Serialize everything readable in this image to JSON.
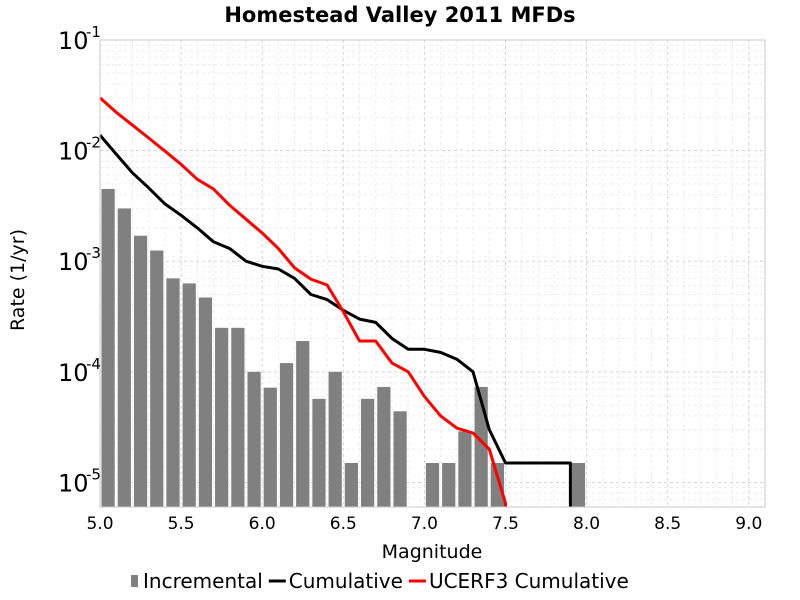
{
  "chart_data": {
    "type": "bar",
    "title": "Homestead Valley 2011 MFDs",
    "xlabel": "Magnitude",
    "ylabel": "Rate (1/yr)",
    "xlim": [
      5.0,
      9.1
    ],
    "ylim": [
      6e-06,
      0.1
    ],
    "yscale": "log",
    "grid": true,
    "legend_position": "bottom",
    "x_ticks": [
      "5.0",
      "5.5",
      "6.0",
      "6.5",
      "7.0",
      "7.5",
      "8.0",
      "8.5",
      "9.0"
    ],
    "y_ticks": [
      {
        "base": "10",
        "exp": "-5"
      },
      {
        "base": "10",
        "exp": "-4"
      },
      {
        "base": "10",
        "exp": "-3"
      },
      {
        "base": "10",
        "exp": "-2"
      },
      {
        "base": "10",
        "exp": "-1"
      }
    ],
    "series": [
      {
        "name": "Incremental",
        "kind": "bar",
        "color": "#808080",
        "x": [
          5.05,
          5.15,
          5.25,
          5.35,
          5.45,
          5.55,
          5.65,
          5.75,
          5.85,
          5.95,
          6.05,
          6.15,
          6.25,
          6.35,
          6.45,
          6.55,
          6.65,
          6.75,
          6.85,
          7.05,
          7.15,
          7.25,
          7.35,
          7.45,
          7.95
        ],
        "values": [
          0.0045,
          0.003,
          0.0017,
          0.00125,
          0.0007,
          0.00063,
          0.00047,
          0.00025,
          0.00025,
          0.0001,
          7.2e-05,
          0.00012,
          0.00019,
          5.7e-05,
          0.0001,
          1.5e-05,
          5.7e-05,
          7.3e-05,
          4.4e-05,
          1.5e-05,
          1.5e-05,
          2.9e-05,
          7.3e-05,
          1.5e-05,
          1.5e-05
        ]
      },
      {
        "name": "Cumulative",
        "kind": "line",
        "color": "#000000",
        "x": [
          5.0,
          5.1,
          5.2,
          5.3,
          5.4,
          5.5,
          5.6,
          5.7,
          5.8,
          5.9,
          6.0,
          6.1,
          6.2,
          6.3,
          6.4,
          6.5,
          6.6,
          6.7,
          6.8,
          6.9,
          7.0,
          7.1,
          7.2,
          7.3,
          7.4,
          7.5,
          7.6,
          7.7,
          7.8,
          7.9,
          7.9
        ],
        "values": [
          0.0138,
          0.0093,
          0.0063,
          0.0046,
          0.0033,
          0.0026,
          0.002,
          0.0015,
          0.0013,
          0.001,
          0.0009,
          0.00085,
          0.0007,
          0.0005,
          0.00045,
          0.00036,
          0.0003,
          0.00028,
          0.0002,
          0.00016,
          0.00016,
          0.00015,
          0.00013,
          0.0001,
          3e-05,
          1.5e-05,
          1.5e-05,
          1.5e-05,
          1.5e-05,
          1.5e-05,
          6e-06
        ]
      },
      {
        "name": "UCERF3 Cumulative",
        "kind": "line",
        "color": "#ff0000",
        "x": [
          5.0,
          5.1,
          5.2,
          5.3,
          5.4,
          5.5,
          5.6,
          5.7,
          5.8,
          5.9,
          6.0,
          6.1,
          6.2,
          6.3,
          6.4,
          6.5,
          6.6,
          6.7,
          6.8,
          6.9,
          7.0,
          7.1,
          7.2,
          7.3,
          7.4,
          7.5,
          7.5
        ],
        "values": [
          0.03,
          0.0222,
          0.017,
          0.013,
          0.0099,
          0.0075,
          0.0055,
          0.0045,
          0.0032,
          0.0024,
          0.0018,
          0.0013,
          0.00087,
          0.00069,
          0.00061,
          0.00035,
          0.00019,
          0.00019,
          0.00012,
          0.0001,
          6e-05,
          4e-05,
          3.1e-05,
          2.8e-05,
          2e-05,
          6.5e-06,
          6e-06
        ]
      }
    ]
  }
}
